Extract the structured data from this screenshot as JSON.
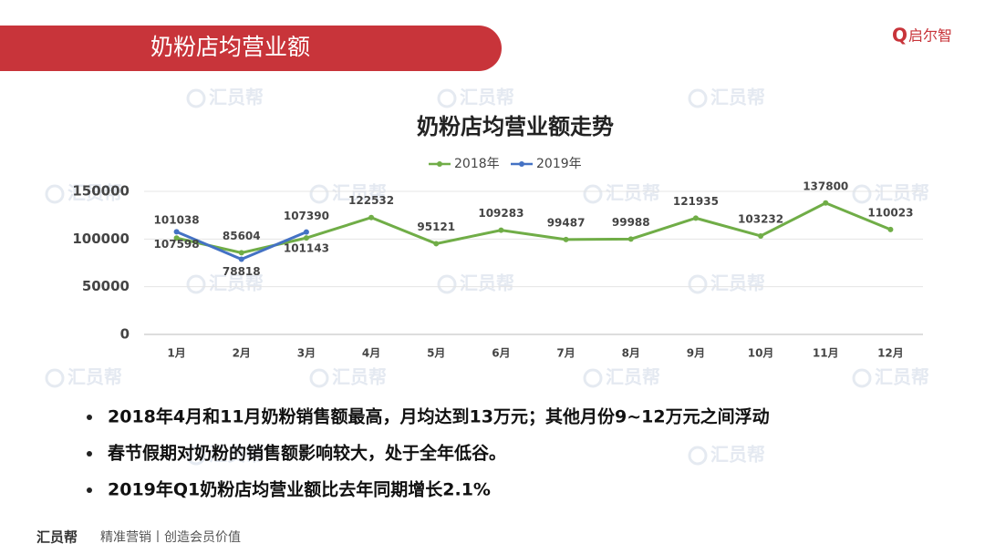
{
  "header": {
    "title": "奶粉店均营业额",
    "logo": "启尔智"
  },
  "watermark": "汇员帮",
  "chart_data": {
    "type": "line",
    "title": "奶粉店均营业额走势",
    "categories": [
      "1月",
      "2月",
      "3月",
      "4月",
      "5月",
      "6月",
      "7月",
      "8月",
      "9月",
      "10月",
      "11月",
      "12月"
    ],
    "series": [
      {
        "name": "2018年",
        "color": "#70ad47",
        "values": [
          101038,
          85604,
          101143,
          122532,
          95121,
          109283,
          99487,
          99988,
          121935,
          103232,
          137800,
          110023
        ]
      },
      {
        "name": "2019年",
        "color": "#4472c4",
        "values": [
          107598,
          78818,
          107390,
          null,
          null,
          null,
          null,
          null,
          null,
          null,
          null,
          null
        ]
      }
    ],
    "ylim": [
      0,
      150000
    ],
    "yticks": [
      0,
      50000,
      100000,
      150000
    ],
    "grid": true,
    "legend": "top"
  },
  "bullets": [
    "2018年4月和11月奶粉销售额最高，月均达到13万元；其他月份9~12万元之间浮动",
    "春节假期对奶粉的销售额影响较大，处于全年低谷。",
    "2019年Q1奶粉店均营业额比去年同期增长2.1%"
  ],
  "footer": {
    "brand": "汇员帮",
    "slogan": "精准营销丨创造会员价值"
  }
}
